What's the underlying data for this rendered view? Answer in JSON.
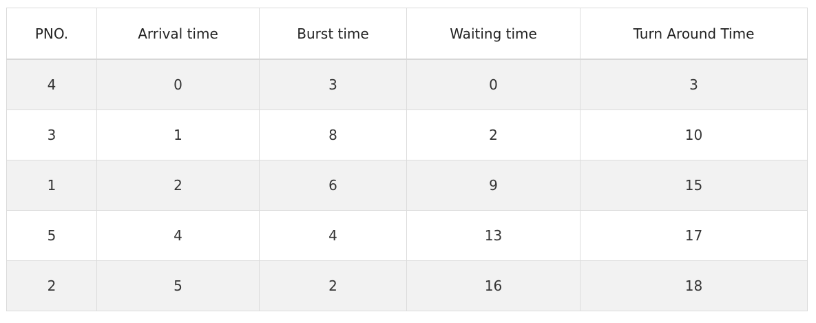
{
  "table": {
    "headers": [
      "PNO.",
      "Arrival time",
      "Burst time",
      "Waiting time",
      "Turn Around Time"
    ],
    "rows": [
      [
        "4",
        "0",
        "3",
        "0",
        "3"
      ],
      [
        "3",
        "1",
        "8",
        "2",
        "10"
      ],
      [
        "1",
        "2",
        "6",
        "9",
        "15"
      ],
      [
        "5",
        "4",
        "4",
        "13",
        "17"
      ],
      [
        "2",
        "5",
        "2",
        "16",
        "18"
      ]
    ]
  }
}
